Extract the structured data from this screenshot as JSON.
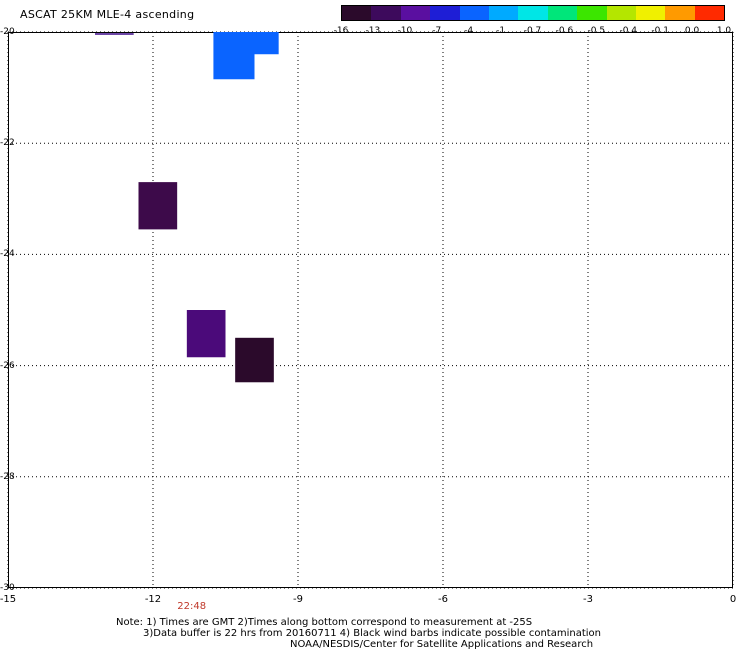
{
  "title": "ASCAT 25KM MLE-4 ascending",
  "colorbar": {
    "labels": [
      "-16",
      "-13",
      "-10",
      "-7",
      "-4",
      "-1",
      "-0.7",
      "-0.6",
      "-0.5",
      "-0.4",
      "-0.1",
      "0.0",
      "1.0"
    ],
    "colors": [
      "#2b0a2b",
      "#3d0a5c",
      "#5a0fa0",
      "#1e1ed6",
      "#0a64ff",
      "#00aaff",
      "#00e6e6",
      "#00e67a",
      "#3ce600",
      "#b4e600",
      "#f0f000",
      "#ff9a00",
      "#ff2a00"
    ]
  },
  "axes": {
    "y_ticks": [
      "-20",
      "-22",
      "-24",
      "-26",
      "-28",
      "-30"
    ],
    "x_ticks": [
      "-15",
      "-12",
      "-9",
      "-6",
      "-3",
      "0"
    ],
    "lat_range": [
      -30,
      -20
    ],
    "lon_range": [
      -15,
      0
    ]
  },
  "time_labels": [
    {
      "text": "22:48",
      "lon": -11.2
    }
  ],
  "cells": [
    {
      "lat_min": -20.85,
      "lat_max": -20.0,
      "lon_min": -10.75,
      "lon_max": -9.9,
      "color": "#0a64ff"
    },
    {
      "lat_min": -20.4,
      "lat_max": -20.0,
      "lon_min": -9.9,
      "lon_max": -9.4,
      "color": "#0a64ff"
    },
    {
      "lat_min": -23.55,
      "lat_max": -22.7,
      "lon_min": -12.3,
      "lon_max": -11.5,
      "color": "#3d0a4a"
    },
    {
      "lat_min": -25.85,
      "lat_max": -25.0,
      "lon_min": -11.3,
      "lon_max": -10.5,
      "color": "#4b0a7a"
    },
    {
      "lat_min": -26.3,
      "lat_max": -25.5,
      "lon_min": -10.3,
      "lon_max": -9.5,
      "color": "#2b0a2b"
    }
  ],
  "notes": {
    "line1": "Note: 1) Times are GMT 2)Times along bottom correspond to measurement at -25S",
    "line2": "3)Data buffer is 22 hrs from 20160711 4) Black wind barbs indicate possible contamination",
    "line3": "NOAA/NESDIS/Center for Satellite Applications and Research"
  }
}
